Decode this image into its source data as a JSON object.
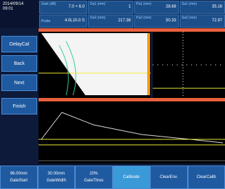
{
  "header": {
    "date": "2014/09/14",
    "time": "09:01",
    "gain_label": "Gain (dB)",
    "gain_value": "7.0 + 6.0",
    "probe_label": "Probe",
    "probe_value": "4.0L10.0 S",
    "readings": [
      {
        "label": "Da1 (mm)",
        "value": "1"
      },
      {
        "label": "Pa1 (mm)",
        "value": "28.69"
      },
      {
        "label": "Sa1 (mm)",
        "value": "35.16"
      },
      {
        "label": "Da2 (mm)",
        "value": "217.38"
      },
      {
        "label": "Pa2 (mm)",
        "value": "50.33"
      },
      {
        "label": "Sa2 (mm)",
        "value": "72.97"
      }
    ]
  },
  "side_buttons": [
    "DelayCal",
    "Back",
    "Next",
    "Finish"
  ],
  "bottom_buttons": [
    {
      "value": "96.00mm",
      "label": "GateStart"
    },
    {
      "value": "30.00mm",
      "label": "GateWidth"
    },
    {
      "value": "20%",
      "label": "GateThres"
    },
    {
      "label": "Calibrate"
    },
    {
      "label": "ClearEnv."
    },
    {
      "label": "ClearCalib"
    }
  ]
}
